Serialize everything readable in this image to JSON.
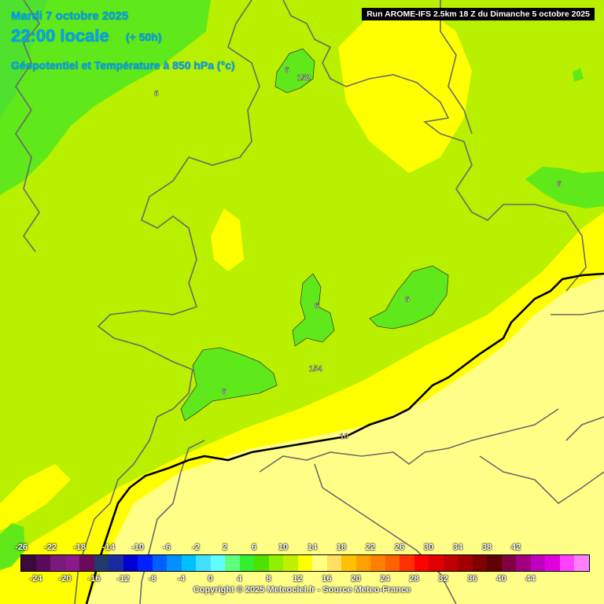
{
  "header": {
    "date": "Mardi 7 octobre 2025",
    "local_time": "22:00 locale",
    "lead_time": "(+ 50h)",
    "parameter": "Géopotentiel et Température à 850 hPa (°c)",
    "run": "Run AROME-IFS 2.5km 18 Z du Dimanche 5 octobre 2025"
  },
  "footer": {
    "copyright": "Copyright © 2025 Meteociel.fr - Source Meteo-France"
  },
  "map_labels": [
    {
      "text": "6",
      "kind": "isotherm"
    },
    {
      "text": "152",
      "kind": "geopotential"
    },
    {
      "text": "6",
      "kind": "isotherm"
    },
    {
      "text": "6",
      "kind": "isotherm"
    },
    {
      "text": "6",
      "kind": "isotherm"
    },
    {
      "text": "6",
      "kind": "isotherm"
    },
    {
      "text": "154",
      "kind": "geopotential"
    },
    {
      "text": "6",
      "kind": "isotherm"
    },
    {
      "text": "10",
      "kind": "isotherm"
    }
  ],
  "legend": {
    "top_ticks": [
      "-26",
      "-22",
      "-18",
      "-14",
      "-10",
      "-6",
      "-2",
      "2",
      "6",
      "10",
      "14",
      "18",
      "22",
      "26",
      "30",
      "34",
      "38",
      "42"
    ],
    "bottom_ticks": [
      "-24",
      "-20",
      "-16",
      "-12",
      "-8",
      "-4",
      "0",
      "4",
      "8",
      "12",
      "16",
      "20",
      "24",
      "28",
      "32",
      "36",
      "40",
      "44"
    ],
    "colors": [
      "#3a0a3a",
      "#5a0a5a",
      "#7a1a7a",
      "#8a1a8a",
      "#6a0a5a",
      "#203a6a",
      "#1a2aa0",
      "#0000d0",
      "#0020ff",
      "#0060ff",
      "#0090ff",
      "#00c0ff",
      "#40e0ff",
      "#60ffff",
      "#60ff80",
      "#30f030",
      "#50e000",
      "#90f000",
      "#c0f000",
      "#ffff00",
      "#ffff80",
      "#ffe060",
      "#ffc000",
      "#ffa000",
      "#ff8000",
      "#ff6000",
      "#ff3000",
      "#ff0000",
      "#e00000",
      "#c00000",
      "#a00000",
      "#800000",
      "#600000",
      "#800040",
      "#a00080",
      "#c000c0",
      "#e000e0",
      "#ff40ff",
      "#ff80ff"
    ]
  },
  "colors": {
    "t4_6": "#5fe81a",
    "t6_8": "#b8f000",
    "t8_10": "#ffff00",
    "t10_12": "#ffff88",
    "t2_4": "#30e020"
  }
}
